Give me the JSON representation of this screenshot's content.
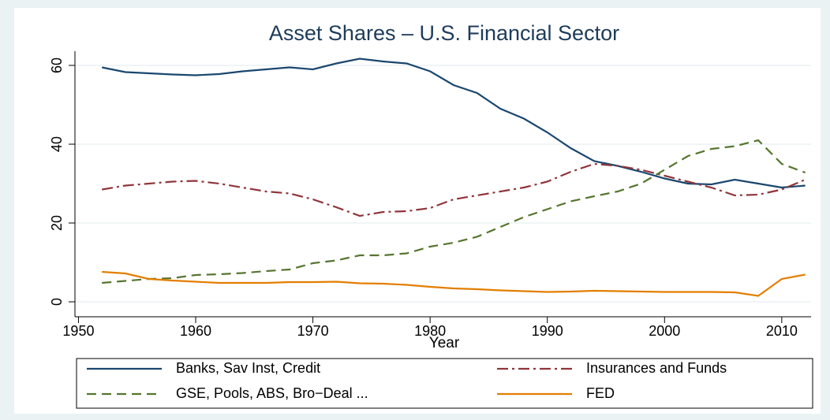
{
  "chart_data": {
    "type": "line",
    "title": "Asset Shares – U.S. Financial Sector",
    "x_label": "Year",
    "x": [
      1952,
      1954,
      1956,
      1958,
      1960,
      1962,
      1964,
      1966,
      1968,
      1970,
      1972,
      1974,
      1976,
      1978,
      1980,
      1982,
      1984,
      1986,
      1988,
      1990,
      1992,
      1994,
      1996,
      1998,
      2000,
      2002,
      2004,
      2006,
      2008,
      2010,
      2012
    ],
    "series": [
      {
        "name": "Banks, Sav Inst, Credit",
        "color": "#1a476f",
        "style": "solid",
        "values": [
          59.5,
          58.3,
          58,
          57.7,
          57.5,
          57.8,
          58.5,
          59,
          59.5,
          59,
          60.5,
          61.7,
          61,
          60.5,
          58.5,
          55,
          53,
          49,
          46.5,
          43,
          39,
          35.7,
          34.5,
          33,
          31.3,
          30,
          29.8,
          31,
          30,
          29,
          29.5
        ]
      },
      {
        "name": "Insurances and Funds",
        "color": "#90353b",
        "style": "longdash-dot",
        "values": [
          28.5,
          29.5,
          30,
          30.5,
          30.7,
          30,
          29,
          28,
          27.5,
          26,
          24,
          21.8,
          22.8,
          23,
          23.8,
          26,
          27,
          28,
          29,
          30.5,
          33,
          35,
          34.5,
          33.5,
          32,
          30.5,
          29,
          27,
          27.2,
          28.5,
          31
        ]
      },
      {
        "name": "GSE, Pools, ABS, Bro−Deal ...",
        "color": "#55752f",
        "style": "dash",
        "values": [
          4.8,
          5.3,
          5.8,
          6,
          6.8,
          7,
          7.3,
          7.8,
          8.2,
          9.8,
          10.5,
          11.8,
          11.8,
          12.3,
          14,
          15,
          16.5,
          19,
          21.5,
          23.5,
          25.5,
          26.8,
          28,
          30,
          33.5,
          37,
          38.8,
          39.5,
          41,
          35,
          32.8
        ]
      },
      {
        "name": "FED",
        "color": "#e37e00",
        "style": "solid",
        "values": [
          7.6,
          7.2,
          5.8,
          5.4,
          5.1,
          4.8,
          4.8,
          4.8,
          5,
          5,
          5.1,
          4.7,
          4.6,
          4.3,
          3.8,
          3.4,
          3.2,
          2.9,
          2.7,
          2.5,
          2.6,
          2.8,
          2.7,
          2.6,
          2.5,
          2.5,
          2.5,
          2.4,
          1.5,
          5.8,
          6.9
        ]
      }
    ],
    "xlim": [
      1949.7,
      2012.5
    ],
    "xticks": [
      1950,
      1960,
      1970,
      1980,
      1990,
      2000,
      2010
    ],
    "ylim": [
      -3.8,
      63.6
    ],
    "yticks": [
      0,
      20,
      40,
      60
    ],
    "grid": true,
    "legend": "bottom"
  }
}
